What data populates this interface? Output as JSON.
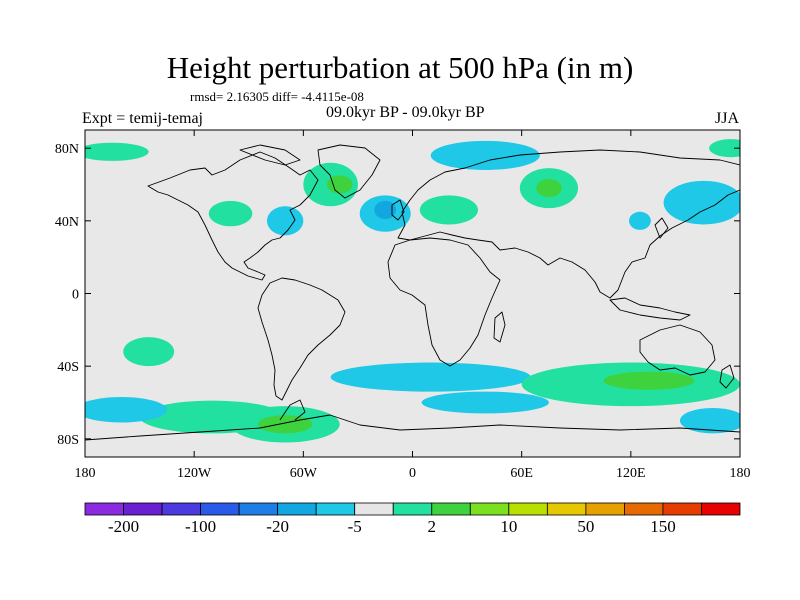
{
  "title": "Height perturbation at 500 hPa (in m)",
  "stats": "rmsd= 2.16305 diff= -4.4115e-08",
  "left_label": "Expt = temij-temaj",
  "center_label": "09.0kyr BP - 09.0kyr BP",
  "right_label": "JJA",
  "map": {
    "projection": "cylindrical-equidistant",
    "lon_range": [
      -180,
      180
    ],
    "lat_range": [
      -90,
      90
    ],
    "background": "#e8e8e8",
    "lat_ticks": [
      {
        "value": 80,
        "label": "80N"
      },
      {
        "value": 40,
        "label": "40N"
      },
      {
        "value": 0,
        "label": "0"
      },
      {
        "value": -40,
        "label": "40S"
      },
      {
        "value": -80,
        "label": "80S"
      }
    ],
    "lon_ticks": [
      {
        "value": -180,
        "label": "180"
      },
      {
        "value": -120,
        "label": "120W"
      },
      {
        "value": -60,
        "label": "60W"
      },
      {
        "value": 0,
        "label": "0"
      },
      {
        "value": 60,
        "label": "60E"
      },
      {
        "value": 120,
        "label": "120E"
      },
      {
        "value": 180,
        "label": "180"
      }
    ]
  },
  "colorbar": {
    "colors": [
      "#8a2be2",
      "#6a1fd0",
      "#4b3ae0",
      "#2a5ae8",
      "#1e7ee6",
      "#12a7e0",
      "#1ec8e6",
      "#e6e6e6",
      "#22e0a0",
      "#3fd23f",
      "#7be020",
      "#b8e000",
      "#e6c800",
      "#e6a000",
      "#e66a00",
      "#e63c00",
      "#e60000"
    ],
    "labels": [
      {
        "after_index": 0,
        "text": "-200"
      },
      {
        "after_index": 2,
        "text": "-100"
      },
      {
        "after_index": 4,
        "text": "-20"
      },
      {
        "after_index": 6,
        "text": "-5"
      },
      {
        "after_index": 8,
        "text": "2"
      },
      {
        "after_index": 10,
        "text": "10"
      },
      {
        "after_index": 12,
        "text": "50"
      },
      {
        "after_index": 14,
        "text": "150"
      }
    ]
  },
  "anomaly_regions": [
    {
      "name": "green-region-south-pacific",
      "lon": -110,
      "lat": -68,
      "rx": 40,
      "ry": 9,
      "color": "#22e0a0"
    },
    {
      "name": "green-region-antarctic",
      "lon": -70,
      "lat": -72,
      "rx": 30,
      "ry": 10,
      "color": "#22e0a0"
    },
    {
      "name": "green-core-antarctic",
      "lon": -70,
      "lat": -72,
      "rx": 15,
      "ry": 5,
      "color": "#3fd23f"
    },
    {
      "name": "blue-region-south-atlantic",
      "lon": 10,
      "lat": -46,
      "rx": 55,
      "ry": 8,
      "color": "#1ec8e6"
    },
    {
      "name": "blue-region-south-indian",
      "lon": 40,
      "lat": -60,
      "rx": 35,
      "ry": 6,
      "color": "#1ec8e6"
    },
    {
      "name": "green-region-south-indian",
      "lon": 120,
      "lat": -50,
      "rx": 60,
      "ry": 12,
      "color": "#22e0a0"
    },
    {
      "name": "green-core-south-indian",
      "lon": 130,
      "lat": -48,
      "rx": 25,
      "ry": 5,
      "color": "#3fd23f"
    },
    {
      "name": "blue-region-south-pacific-west",
      "lon": -160,
      "lat": -64,
      "rx": 25,
      "ry": 7,
      "color": "#1ec8e6"
    },
    {
      "name": "blue-region-southeast-pacific",
      "lon": 165,
      "lat": -70,
      "rx": 18,
      "ry": 7,
      "color": "#1ec8e6"
    },
    {
      "name": "green-region-tropical-pacific",
      "lon": -145,
      "lat": -32,
      "rx": 14,
      "ry": 8,
      "color": "#22e0a0"
    },
    {
      "name": "green-region-north-atlantic",
      "lon": -45,
      "lat": 60,
      "rx": 15,
      "ry": 12,
      "color": "#22e0a0"
    },
    {
      "name": "green-core-north-atlantic",
      "lon": -40,
      "lat": 60,
      "rx": 7,
      "ry": 5,
      "color": "#3fd23f"
    },
    {
      "name": "green-region-north-america",
      "lon": -100,
      "lat": 44,
      "rx": 12,
      "ry": 7,
      "color": "#22e0a0"
    },
    {
      "name": "blue-region-north-america",
      "lon": -70,
      "lat": 40,
      "rx": 10,
      "ry": 8,
      "color": "#1ec8e6"
    },
    {
      "name": "blue-region-europe",
      "lon": -15,
      "lat": 44,
      "rx": 14,
      "ry": 10,
      "color": "#1ec8e6"
    },
    {
      "name": "blue-core-europe",
      "lon": -15,
      "lat": 46,
      "rx": 6,
      "ry": 5,
      "color": "#12a7e0"
    },
    {
      "name": "green-region-europe",
      "lon": 20,
      "lat": 46,
      "rx": 16,
      "ry": 8,
      "color": "#22e0a0"
    },
    {
      "name": "blue-region-north-siberia",
      "lon": 40,
      "lat": 76,
      "rx": 30,
      "ry": 8,
      "color": "#1ec8e6"
    },
    {
      "name": "green-region-central-asia",
      "lon": 75,
      "lat": 58,
      "rx": 16,
      "ry": 11,
      "color": "#22e0a0"
    },
    {
      "name": "green-core-central-asia",
      "lon": 75,
      "lat": 58,
      "rx": 7,
      "ry": 5,
      "color": "#3fd23f"
    },
    {
      "name": "blue-region-north-pacific",
      "lon": 160,
      "lat": 50,
      "rx": 22,
      "ry": 12,
      "color": "#1ec8e6"
    },
    {
      "name": "green-region-arctic-pacific",
      "lon": -165,
      "lat": 78,
      "rx": 20,
      "ry": 5,
      "color": "#22e0a0"
    },
    {
      "name": "green-region-northeast-pacific",
      "lon": 175,
      "lat": 80,
      "rx": 12,
      "ry": 5,
      "color": "#22e0a0"
    },
    {
      "name": "blue-region-east-asia",
      "lon": 125,
      "lat": 40,
      "rx": 6,
      "ry": 5,
      "color": "#1ec8e6"
    }
  ]
}
